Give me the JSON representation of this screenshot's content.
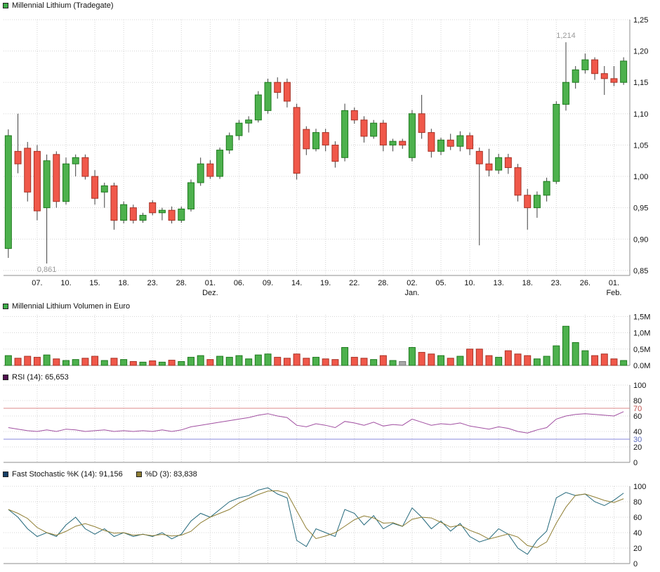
{
  "ui": {
    "price_legend": "Millennial Lithium (Tradegate)",
    "volume_legend": "Millennial Lithium Volumen in Euro",
    "rsi_legend": "RSI (14): 65,653",
    "stoch_k_legend": "Fast Stochastic %K (14): 91,156",
    "stoch_d_legend": "%D (3): 83,838",
    "legend_colors": {
      "price": "#3fae49",
      "volume": "#3fae49",
      "rsi": "#50104f",
      "stoch_k": "#173f66",
      "stoch_d": "#8f7e33"
    }
  },
  "chart_data": [
    {
      "type": "candlestick",
      "title": "Millennial Lithium (Tradegate)",
      "y_range": [
        0.842,
        1.25
      ],
      "y_ticks": [
        {
          "v": 1.25,
          "label": "1,25"
        },
        {
          "v": 1.2,
          "label": "1,20"
        },
        {
          "v": 1.15,
          "label": "1,15"
        },
        {
          "v": 1.1,
          "label": "1,10"
        },
        {
          "v": 1.05,
          "label": "1,05"
        },
        {
          "v": 1.0,
          "label": "1,00"
        },
        {
          "v": 0.95,
          "label": "0,95"
        },
        {
          "v": 0.9,
          "label": "0,90"
        },
        {
          "v": 0.85,
          "label": "0,85"
        }
      ],
      "x_ticks": [
        {
          "label": "07.",
          "i": 3
        },
        {
          "label": "10.",
          "i": 6
        },
        {
          "label": "15.",
          "i": 9
        },
        {
          "label": "18.",
          "i": 12
        },
        {
          "label": "23.",
          "i": 15
        },
        {
          "label": "28.",
          "i": 18
        },
        {
          "label": "01.",
          "i": 21,
          "month": "Dez."
        },
        {
          "label": "06.",
          "i": 24
        },
        {
          "label": "09.",
          "i": 27
        },
        {
          "label": "14.",
          "i": 30
        },
        {
          "label": "19.",
          "i": 33
        },
        {
          "label": "22.",
          "i": 36
        },
        {
          "label": "28.",
          "i": 39
        },
        {
          "label": "02.",
          "i": 42,
          "month": "Jan."
        },
        {
          "label": "05.",
          "i": 45
        },
        {
          "label": "10.",
          "i": 48
        },
        {
          "label": "13.",
          "i": 51
        },
        {
          "label": "18.",
          "i": 54
        },
        {
          "label": "23.",
          "i": 57
        },
        {
          "label": "26.",
          "i": 60
        },
        {
          "label": "01.",
          "i": 63,
          "month": "Feb."
        }
      ],
      "candles": [
        [
          0.885,
          1.075,
          0.87,
          1.065
        ],
        [
          1.04,
          1.1,
          1.005,
          1.02
        ],
        [
          1.045,
          1.055,
          0.96,
          0.975
        ],
        [
          1.04,
          1.05,
          0.93,
          0.945
        ],
        [
          0.95,
          1.035,
          0.861,
          1.025
        ],
        [
          1.035,
          1.04,
          0.95,
          0.96
        ],
        [
          0.96,
          1.03,
          0.955,
          1.02
        ],
        [
          1.02,
          1.035,
          1.0,
          1.03
        ],
        [
          1.03,
          1.035,
          0.995,
          1.0
        ],
        [
          1.0,
          1.01,
          0.955,
          0.965
        ],
        [
          0.975,
          0.99,
          0.95,
          0.985
        ],
        [
          0.985,
          0.99,
          0.915,
          0.93
        ],
        [
          0.93,
          0.96,
          0.925,
          0.955
        ],
        [
          0.95,
          0.955,
          0.925,
          0.93
        ],
        [
          0.93,
          0.942,
          0.926,
          0.938
        ],
        [
          0.958,
          0.962,
          0.938,
          0.942
        ],
        [
          0.942,
          0.95,
          0.93,
          0.946
        ],
        [
          0.946,
          0.952,
          0.925,
          0.93
        ],
        [
          0.93,
          0.952,
          0.926,
          0.948
        ],
        [
          0.948,
          0.995,
          0.944,
          0.99
        ],
        [
          0.99,
          1.03,
          0.985,
          1.02
        ],
        [
          1.02,
          1.026,
          0.996,
          1.0
        ],
        [
          1.0,
          1.046,
          0.996,
          1.042
        ],
        [
          1.042,
          1.07,
          1.036,
          1.065
        ],
        [
          1.065,
          1.09,
          1.058,
          1.085
        ],
        [
          1.085,
          1.096,
          1.07,
          1.09
        ],
        [
          1.09,
          1.136,
          1.086,
          1.13
        ],
        [
          1.105,
          1.156,
          1.1,
          1.15
        ],
        [
          1.15,
          1.158,
          1.124,
          1.134
        ],
        [
          1.15,
          1.156,
          1.11,
          1.12
        ],
        [
          1.11,
          1.116,
          0.995,
          1.005
        ],
        [
          1.075,
          1.08,
          1.034,
          1.044
        ],
        [
          1.044,
          1.076,
          1.04,
          1.07
        ],
        [
          1.07,
          1.076,
          1.04,
          1.05
        ],
        [
          1.05,
          1.056,
          1.014,
          1.024
        ],
        [
          1.03,
          1.116,
          1.024,
          1.105
        ],
        [
          1.105,
          1.11,
          1.084,
          1.09
        ],
        [
          1.09,
          1.096,
          1.054,
          1.064
        ],
        [
          1.064,
          1.09,
          1.06,
          1.085
        ],
        [
          1.085,
          1.09,
          1.04,
          1.05
        ],
        [
          1.05,
          1.06,
          1.04,
          1.056
        ],
        [
          1.056,
          1.06,
          1.044,
          1.05
        ],
        [
          1.03,
          1.106,
          1.024,
          1.1
        ],
        [
          1.1,
          1.13,
          1.06,
          1.07
        ],
        [
          1.07,
          1.076,
          1.03,
          1.04
        ],
        [
          1.04,
          1.062,
          1.034,
          1.058
        ],
        [
          1.058,
          1.068,
          1.042,
          1.048
        ],
        [
          1.048,
          1.072,
          1.04,
          1.065
        ],
        [
          1.065,
          1.07,
          1.034,
          1.044
        ],
        [
          1.04,
          1.046,
          0.89,
          1.02
        ],
        [
          1.02,
          1.044,
          1.0,
          1.01
        ],
        [
          1.01,
          1.036,
          1.004,
          1.03
        ],
        [
          1.03,
          1.036,
          1.004,
          1.014
        ],
        [
          1.014,
          1.02,
          0.96,
          0.97
        ],
        [
          0.97,
          0.98,
          0.915,
          0.95
        ],
        [
          0.95,
          0.976,
          0.934,
          0.97
        ],
        [
          0.97,
          0.998,
          0.96,
          0.992
        ],
        [
          0.992,
          1.12,
          0.988,
          1.115
        ],
        [
          1.115,
          1.214,
          1.105,
          1.15
        ],
        [
          1.15,
          1.176,
          1.14,
          1.17
        ],
        [
          1.17,
          1.196,
          1.164,
          1.186
        ],
        [
          1.186,
          1.19,
          1.154,
          1.164
        ],
        [
          1.164,
          1.176,
          1.13,
          1.156
        ],
        [
          1.156,
          1.176,
          1.144,
          1.15
        ],
        [
          1.15,
          1.19,
          1.146,
          1.184
        ]
      ],
      "annotations": [
        {
          "i": 58,
          "v": 1.214,
          "label": "1,214",
          "pos": "above"
        },
        {
          "i": 4,
          "v": 0.861,
          "label": "0,861",
          "pos": "below"
        }
      ],
      "colors": {
        "up": "#4db14d",
        "up_border": "#1e7a1e",
        "down": "#f0584a",
        "down_border": "#a83226",
        "wick": "#404040"
      }
    },
    {
      "type": "bar",
      "title": "Millennial Lithium Volumen in Euro",
      "y_range": [
        0,
        1.55
      ],
      "unit": "M",
      "y_ticks": [
        {
          "v": 1.5,
          "label": "1,5M"
        },
        {
          "v": 1.0,
          "label": "1,0M"
        },
        {
          "v": 0.5,
          "label": "0,5M"
        },
        {
          "v": 0.0,
          "label": "0,0M"
        }
      ],
      "values": [
        0.3,
        0.22,
        0.28,
        0.25,
        0.32,
        0.2,
        0.15,
        0.18,
        0.22,
        0.28,
        0.15,
        0.22,
        0.18,
        0.12,
        0.1,
        0.14,
        0.1,
        0.16,
        0.12,
        0.25,
        0.3,
        0.18,
        0.28,
        0.25,
        0.3,
        0.2,
        0.32,
        0.35,
        0.25,
        0.22,
        0.35,
        0.22,
        0.25,
        0.2,
        0.18,
        0.55,
        0.25,
        0.22,
        0.18,
        0.3,
        0.15,
        0.12,
        0.55,
        0.4,
        0.35,
        0.3,
        0.22,
        0.28,
        0.5,
        0.5,
        0.3,
        0.25,
        0.45,
        0.35,
        0.3,
        0.2,
        0.28,
        0.6,
        1.2,
        0.7,
        0.45,
        0.3,
        0.35,
        0.2,
        0.15
      ],
      "color_overrides": {
        "41": "#a8a8a8"
      }
    },
    {
      "type": "line",
      "title": "RSI (14)",
      "current": "65,653",
      "y_range": [
        0,
        100
      ],
      "line_color": "#a14fa1",
      "y_ticks": [
        {
          "v": 100,
          "label": "100"
        },
        {
          "v": 80,
          "label": "80"
        },
        {
          "v": 70,
          "label": "70",
          "color": "#c0504d",
          "ref": true
        },
        {
          "v": 60,
          "label": "60"
        },
        {
          "v": 40,
          "label": "40"
        },
        {
          "v": 30,
          "label": "30",
          "color": "#5b6bc0",
          "ref": true
        },
        {
          "v": 20,
          "label": "20"
        },
        {
          "v": 0,
          "label": "0"
        }
      ],
      "ref_lines": [
        {
          "v": 70,
          "color": "#dd8a8a"
        },
        {
          "v": 30,
          "color": "#8a8add"
        }
      ],
      "values": [
        45,
        43,
        41,
        40,
        42,
        40,
        43,
        42,
        40,
        41,
        42,
        40,
        41,
        40,
        41,
        40,
        42,
        40,
        42,
        46,
        48,
        50,
        52,
        54,
        56,
        58,
        61,
        63,
        60,
        58,
        48,
        46,
        50,
        48,
        45,
        53,
        51,
        48,
        52,
        47,
        49,
        48,
        56,
        52,
        48,
        50,
        49,
        51,
        47,
        45,
        43,
        46,
        44,
        40,
        38,
        42,
        45,
        56,
        60,
        62,
        63,
        62,
        61,
        60,
        65.653
      ]
    },
    {
      "type": "line-multi",
      "title": "Fast Stochastic",
      "y_range": [
        0,
        100
      ],
      "y_ticks": [
        {
          "v": 100,
          "label": "100"
        },
        {
          "v": 80,
          "label": "80"
        },
        {
          "v": 60,
          "label": "60"
        },
        {
          "v": 40,
          "label": "40"
        },
        {
          "v": 20,
          "label": "20"
        },
        {
          "v": 0,
          "label": "0"
        }
      ],
      "series": [
        {
          "name": "Fast Stochastic %K (14)",
          "current": "91,156",
          "color": "#23687b",
          "values": [
            70,
            60,
            45,
            35,
            40,
            35,
            50,
            60,
            45,
            38,
            45,
            35,
            40,
            35,
            38,
            35,
            40,
            32,
            38,
            55,
            65,
            60,
            70,
            80,
            85,
            88,
            95,
            98,
            90,
            85,
            30,
            22,
            45,
            40,
            35,
            70,
            65,
            50,
            62,
            45,
            52,
            48,
            72,
            60,
            45,
            55,
            42,
            52,
            35,
            28,
            32,
            45,
            38,
            20,
            12,
            30,
            42,
            85,
            92,
            88,
            90,
            80,
            75,
            82,
            91.156
          ]
        },
        {
          "name": "%D (3)",
          "current": "83,838",
          "color": "#8f7e33",
          "values": [
            70,
            65,
            58.3,
            46.7,
            40,
            36.7,
            41.7,
            48.3,
            51.7,
            47.7,
            42.7,
            39.3,
            40,
            36.7,
            37.7,
            36,
            37.7,
            35.7,
            36.7,
            41.7,
            52.7,
            60,
            65,
            70,
            78.3,
            84.3,
            89.3,
            93.7,
            94.3,
            91,
            68.3,
            45.7,
            32.3,
            35.7,
            40,
            48.3,
            56.7,
            61.7,
            59,
            52.3,
            53,
            48.3,
            57.3,
            60,
            59,
            53.3,
            47.3,
            49.7,
            43,
            38.3,
            31.7,
            35,
            38.3,
            34.3,
            23.3,
            20.7,
            28,
            52.3,
            73,
            88.3,
            90,
            86,
            81.7,
            79,
            83.838
          ]
        }
      ]
    }
  ]
}
